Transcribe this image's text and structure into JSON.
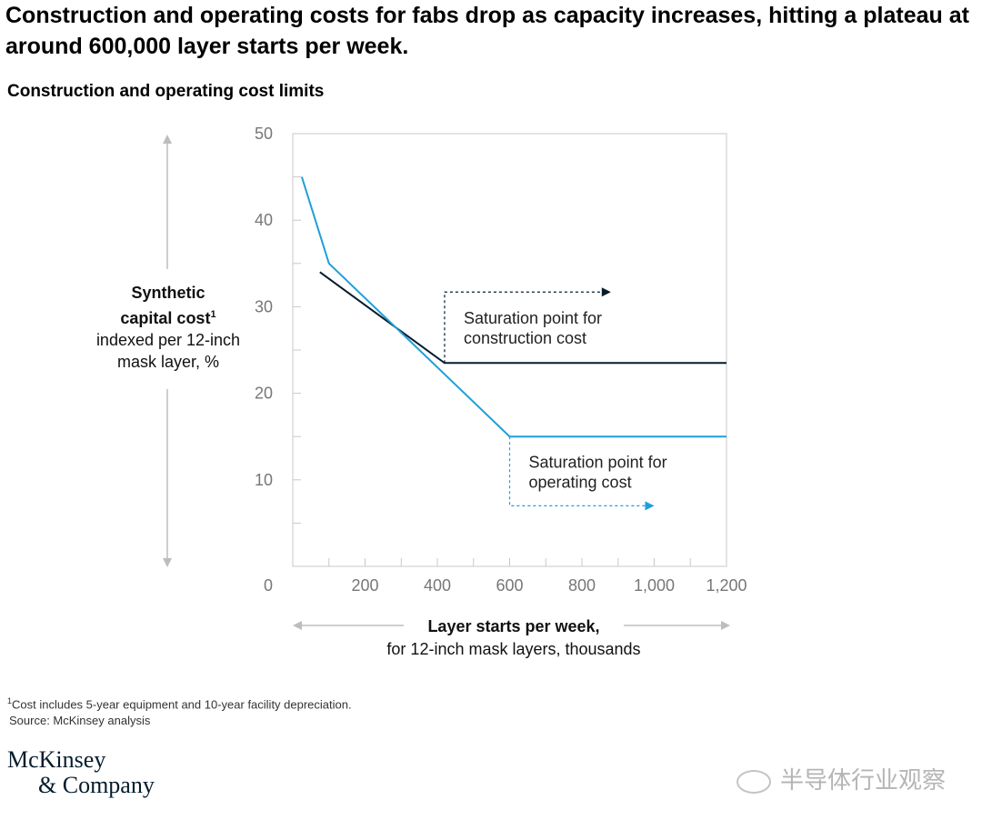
{
  "headline": "Construction and operating costs for fabs drop as capacity increases, hitting a plateau at around 600,000 layer starts per week.",
  "chart_data": {
    "type": "line",
    "title": "Construction and operating cost limits",
    "ylabel": {
      "bold_line1": "Synthetic",
      "bold_line2": "capital cost",
      "superscript": "1",
      "line3": "indexed per 12-inch",
      "line4": "mask layer, %"
    },
    "xlabel": {
      "bold": "Layer starts per week,",
      "rest": "for 12-inch mask layers, thousands"
    },
    "xlim": [
      0,
      1200
    ],
    "ylim": [
      0,
      50
    ],
    "x_ticks": [
      200,
      400,
      600,
      800,
      1000,
      1200
    ],
    "x_tick_labels": [
      "200",
      "400",
      "600",
      "800",
      "1,000",
      "1,200"
    ],
    "y_ticks": [
      10,
      20,
      30,
      40,
      50
    ],
    "y_tick_labels": [
      "10",
      "20",
      "30",
      "40",
      "50"
    ],
    "origin_label": "0",
    "grid": false,
    "series": [
      {
        "color": "#051c2c",
        "points": [
          [
            75,
            34
          ],
          [
            420,
            23.5
          ],
          [
            1200,
            23.5
          ]
        ]
      },
      {
        "color": "#1f9fd9",
        "points": [
          [
            25,
            45
          ],
          [
            100,
            35
          ],
          [
            600,
            15
          ],
          [
            1200,
            15
          ]
        ]
      }
    ],
    "annotations": [
      {
        "lines": [
          "Saturation point for",
          "construction cost"
        ],
        "x_from": 420,
        "y_from": 23.5,
        "y_level": 31.7,
        "x_to": 880,
        "color": "#051c2c"
      },
      {
        "lines": [
          "Saturation point for",
          "operating cost"
        ],
        "x_from": 600,
        "y_from": 15,
        "y_level": 7,
        "x_to": 1000,
        "color": "#1f9fd9"
      }
    ]
  },
  "footnote": "Cost includes 5-year equipment and 10-year facility depreciation.",
  "footnote_mark": "1",
  "source": "Source: McKinsey analysis",
  "logo": {
    "line1": "McKinsey",
    "line2": "& Company"
  },
  "watermark": "半导体行业观察"
}
